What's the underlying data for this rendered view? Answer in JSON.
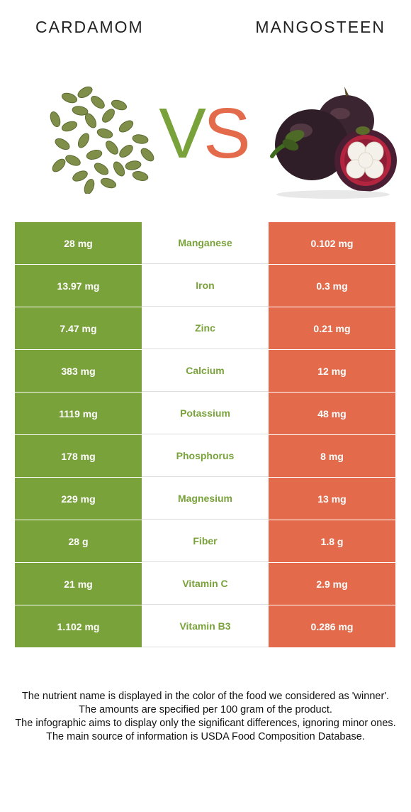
{
  "colors": {
    "green": "#79a23a",
    "red": "#e36b4b"
  },
  "header": {
    "left_title": "CARDAMOM",
    "right_title": "MANGOSTEEN",
    "vs_v": "V",
    "vs_s": "S"
  },
  "images": {
    "left": "cardamom-pods-image",
    "right": "mangosteen-fruit-image"
  },
  "rows": [
    {
      "left": "28 mg",
      "nutrient": "Manganese",
      "right": "0.102 mg",
      "winner": "left"
    },
    {
      "left": "13.97 mg",
      "nutrient": "Iron",
      "right": "0.3 mg",
      "winner": "left"
    },
    {
      "left": "7.47 mg",
      "nutrient": "Zinc",
      "right": "0.21 mg",
      "winner": "left"
    },
    {
      "left": "383 mg",
      "nutrient": "Calcium",
      "right": "12 mg",
      "winner": "left"
    },
    {
      "left": "1119 mg",
      "nutrient": "Potassium",
      "right": "48 mg",
      "winner": "left"
    },
    {
      "left": "178 mg",
      "nutrient": "Phosphorus",
      "right": "8 mg",
      "winner": "left"
    },
    {
      "left": "229 mg",
      "nutrient": "Magnesium",
      "right": "13 mg",
      "winner": "left"
    },
    {
      "left": "28 g",
      "nutrient": "Fiber",
      "right": "1.8 g",
      "winner": "left"
    },
    {
      "left": "21 mg",
      "nutrient": "Vitamin C",
      "right": "2.9 mg",
      "winner": "left"
    },
    {
      "left": "1.102 mg",
      "nutrient": "Vitamin B3",
      "right": "0.286 mg",
      "winner": "left"
    }
  ],
  "footnote": [
    "The nutrient name is displayed in the color of the food we considered as 'winner'.",
    "The amounts are specified per 100 gram of the product.",
    "The infographic aims to display only the significant differences, ignoring minor ones.",
    "The main source of information is USDA Food Composition Database."
  ]
}
